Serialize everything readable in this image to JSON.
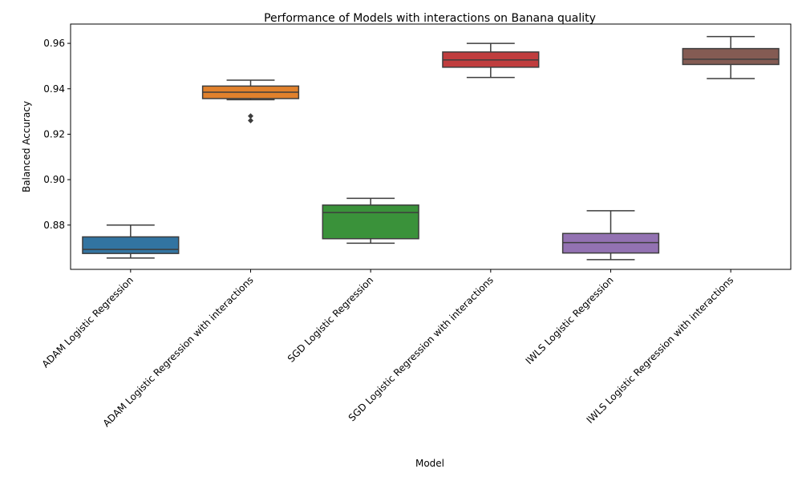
{
  "chart_data": {
    "type": "box",
    "title": "Performance of Models with interactions on Banana quality",
    "xlabel": "Model",
    "ylabel": "Balanced Accuracy",
    "ylim": [
      0.8605,
      0.9685
    ],
    "yticks": [
      0.88,
      0.9,
      0.92,
      0.94,
      0.96
    ],
    "ytick_labels": [
      "0.88",
      "0.90",
      "0.92",
      "0.94",
      "0.96"
    ],
    "grid": false,
    "legend": "none",
    "categories": [
      "ADAM Logistic Regression",
      "ADAM Logistic Regression with interactions",
      "SGD Logistic Regression",
      "SGD Logistic Regression with interactions",
      "IWLS Logistic Regression",
      "IWLS Logistic Regression with interactions"
    ],
    "boxes": [
      {
        "color": "#3274a1",
        "whisker_low": 0.8655,
        "q1": 0.8675,
        "median": 0.8693,
        "q3": 0.8748,
        "whisker_high": 0.88,
        "outliers": []
      },
      {
        "color": "#e1812c",
        "whisker_low": 0.9352,
        "q1": 0.9357,
        "median": 0.9385,
        "q3": 0.9412,
        "whisker_high": 0.9438,
        "outliers": [
          0.928,
          0.926
        ]
      },
      {
        "color": "#3a923a",
        "whisker_low": 0.872,
        "q1": 0.874,
        "median": 0.8855,
        "q3": 0.8888,
        "whisker_high": 0.8918,
        "outliers": []
      },
      {
        "color": "#c03d3e",
        "whisker_low": 0.945,
        "q1": 0.9495,
        "median": 0.9527,
        "q3": 0.9562,
        "whisker_high": 0.96,
        "outliers": []
      },
      {
        "color": "#9372b2",
        "whisker_low": 0.8648,
        "q1": 0.8677,
        "median": 0.8723,
        "q3": 0.8763,
        "whisker_high": 0.8863,
        "outliers": []
      },
      {
        "color": "#845b53",
        "whisker_low": 0.9445,
        "q1": 0.9507,
        "median": 0.953,
        "q3": 0.9577,
        "whisker_high": 0.963,
        "outliers": []
      }
    ]
  }
}
